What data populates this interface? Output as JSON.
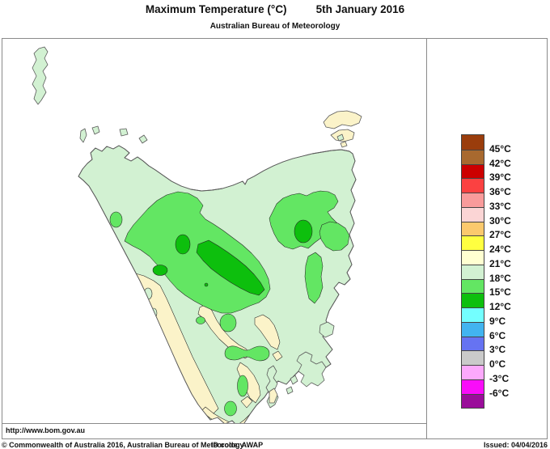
{
  "header": {
    "title": "Maximum Temperature (°C)",
    "date": "5th January 2016",
    "subtitle": "Australian Bureau of Meteorology"
  },
  "map": {
    "url": "http://www.bom.gov.au",
    "colors": {
      "sea": "#ffffff",
      "mint_18_21": "#d2f1d2",
      "cream_21_24": "#fbf3c9",
      "green_15_18": "#63e663",
      "dark_green_12_15": "#0dbf0d",
      "coast_line": "#5a5a5a",
      "contour_line": "#222222"
    }
  },
  "legend": {
    "unit": "°C",
    "entries": [
      {
        "color": "#9a3d0c",
        "label": "45°C"
      },
      {
        "color": "#a8692f",
        "label": "42°C"
      },
      {
        "color": "#cc0000",
        "label": "39°C"
      },
      {
        "color": "#fb4141",
        "label": "36°C"
      },
      {
        "color": "#f99b9b",
        "label": "33°C"
      },
      {
        "color": "#fbd5d5",
        "label": "30°C"
      },
      {
        "color": "#fbc96d",
        "label": "27°C"
      },
      {
        "color": "#ffff40",
        "label": "24°C"
      },
      {
        "color": "#ffffd1",
        "label": "21°C"
      },
      {
        "color": "#d2f1d2",
        "label": "18°C"
      },
      {
        "color": "#63e663",
        "label": "15°C"
      },
      {
        "color": "#0dbf0d",
        "label": "12°C"
      },
      {
        "color": "#73ffff",
        "label": "9°C"
      },
      {
        "color": "#42b4f0",
        "label": "6°C"
      },
      {
        "color": "#6673f2",
        "label": "3°C"
      },
      {
        "color": "#cacaca",
        "label": "0°C"
      },
      {
        "color": "#fca9fc",
        "label": "-3°C"
      },
      {
        "color": "#f90df9",
        "label": "-6°C"
      },
      {
        "color": "#9a0d9a",
        "label": ""
      }
    ]
  },
  "footer": {
    "copyright": "© Commonwealth of Australia 2016, Australian Bureau of Meteorology",
    "id_code": "ID code: AWAP",
    "issued": "Issued: 04/04/2016"
  }
}
